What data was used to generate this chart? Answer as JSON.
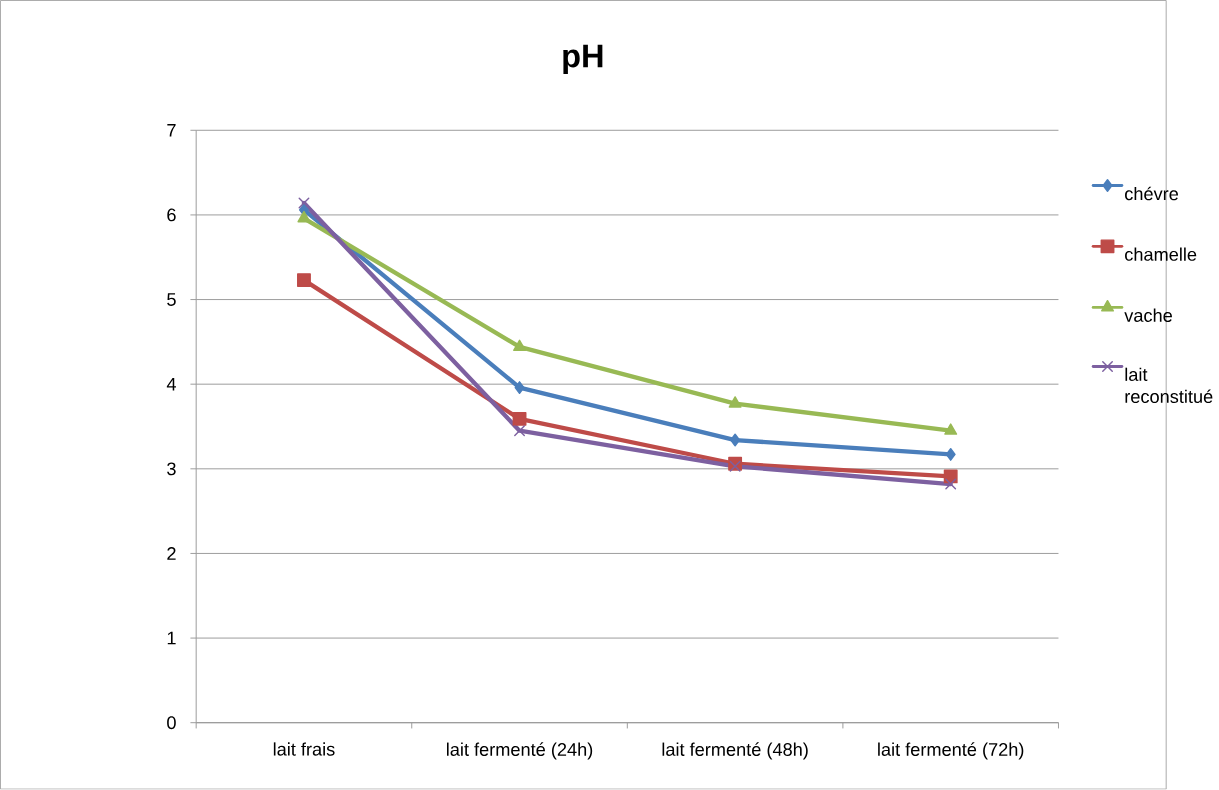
{
  "chart_data": {
    "type": "line",
    "title": "pH",
    "categories": [
      "lait frais",
      "lait fermenté (24h)",
      "lait fermenté (48h)",
      "lait fermenté (72h)"
    ],
    "series": [
      {
        "name": "chévre",
        "color": "#4a7ebb",
        "marker": "diamond",
        "values": [
          6.06,
          3.96,
          3.34,
          3.17
        ]
      },
      {
        "name": "chamelle",
        "color": "#be4b48",
        "marker": "square",
        "values": [
          5.23,
          3.59,
          3.06,
          2.91
        ]
      },
      {
        "name": "vache",
        "color": "#98b954",
        "marker": "triangle",
        "values": [
          5.96,
          4.44,
          3.77,
          3.45
        ]
      },
      {
        "name": "lait reconstitué",
        "color": "#7d60a0",
        "marker": "cross",
        "values": [
          6.14,
          3.45,
          3.03,
          2.82
        ]
      }
    ],
    "ylim": [
      0,
      7
    ],
    "yticks": [
      0,
      1,
      2,
      3,
      4,
      5,
      6,
      7
    ],
    "grid": "y",
    "legend": "right",
    "line_style": "solid"
  }
}
